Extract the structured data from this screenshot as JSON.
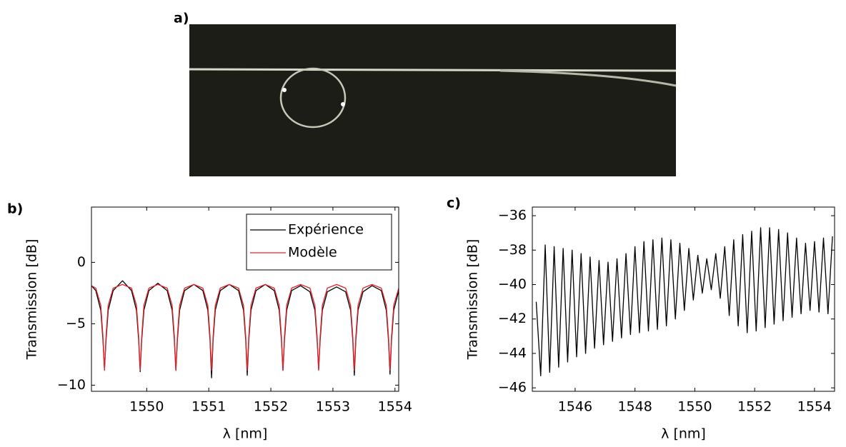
{
  "image": {
    "label": "a)"
  },
  "chart_data": [
    {
      "type": "line",
      "label": "b)",
      "xlabel": "λ [nm]",
      "ylabel": "Transmission [dB]",
      "xlim": [
        1549.11,
        1554.06
      ],
      "ylim": [
        -10.5,
        4.5
      ],
      "xticks": [
        1550,
        1551,
        1552,
        1553,
        1554
      ],
      "yticks": [
        {
          "value": -10,
          "label": "−10"
        },
        {
          "value": -5,
          "label": "−5"
        },
        0
      ],
      "legend": "upper right",
      "x": [
        1549.11,
        1549.18,
        1549.26,
        1549.295,
        1549.32,
        1549.345,
        1549.38,
        1549.46,
        1549.61,
        1549.755,
        1549.835,
        1549.87,
        1549.895,
        1549.92,
        1549.955,
        1550.035,
        1550.18,
        1550.33,
        1550.41,
        1550.445,
        1550.47,
        1550.495,
        1550.53,
        1550.61,
        1550.76,
        1550.905,
        1550.985,
        1551.02,
        1551.045,
        1551.07,
        1551.105,
        1551.185,
        1551.33,
        1551.48,
        1551.56,
        1551.595,
        1551.62,
        1551.645,
        1551.68,
        1551.76,
        1551.91,
        1552.055,
        1552.135,
        1552.17,
        1552.195,
        1552.22,
        1552.255,
        1552.335,
        1552.48,
        1552.63,
        1552.71,
        1552.745,
        1552.77,
        1552.795,
        1552.83,
        1552.91,
        1553.06,
        1553.205,
        1553.285,
        1553.32,
        1553.345,
        1553.37,
        1553.405,
        1553.485,
        1553.63,
        1553.78,
        1553.86,
        1553.895,
        1553.92,
        1553.945,
        1553.98,
        1554.06
      ],
      "series": [
        {
          "name": "Expérience",
          "color": "#000000",
          "values": [
            -1.9,
            -2.3,
            -3.9,
            -6.3,
            -8.7,
            -6.3,
            -3.9,
            -2.3,
            -1.5,
            -2.3,
            -3.9,
            -6.3,
            -8.9,
            -6.3,
            -3.9,
            -2.3,
            -1.7,
            -2.3,
            -3.9,
            -6.3,
            -8.8,
            -6.3,
            -3.9,
            -2.3,
            -1.8,
            -2.3,
            -3.9,
            -6.3,
            -9.4,
            -6.3,
            -3.9,
            -2.3,
            -1.8,
            -2.3,
            -3.9,
            -6.3,
            -9.2,
            -6.3,
            -3.9,
            -2.3,
            -1.8,
            -2.3,
            -3.9,
            -6.3,
            -8.8,
            -6.3,
            -3.9,
            -2.3,
            -1.9,
            -2.4,
            -3.9,
            -6.3,
            -8.7,
            -6.3,
            -3.9,
            -2.4,
            -2.0,
            -2.4,
            -3.9,
            -6.3,
            -9.2,
            -6.3,
            -3.9,
            -2.4,
            -1.9,
            -2.3,
            -3.9,
            -6.3,
            -9.1,
            -6.3,
            -3.9,
            -2.3
          ]
        },
        {
          "name": "Modèle",
          "color": "#e8202a",
          "values": [
            -1.9,
            -2.1,
            -3.5,
            -6.0,
            -8.8,
            -6.0,
            -3.5,
            -2.1,
            -1.8,
            -2.1,
            -3.5,
            -6.0,
            -8.8,
            -6.0,
            -3.5,
            -2.1,
            -1.8,
            -2.1,
            -3.5,
            -6.0,
            -8.8,
            -6.0,
            -3.5,
            -2.1,
            -1.8,
            -2.1,
            -3.5,
            -6.0,
            -8.8,
            -6.0,
            -3.5,
            -2.1,
            -1.8,
            -2.1,
            -3.5,
            -6.0,
            -8.8,
            -6.0,
            -3.5,
            -2.1,
            -1.8,
            -2.1,
            -3.5,
            -6.0,
            -8.8,
            -6.0,
            -3.5,
            -2.1,
            -1.8,
            -2.1,
            -3.5,
            -6.0,
            -8.8,
            -6.0,
            -3.5,
            -2.1,
            -1.8,
            -2.1,
            -3.5,
            -6.0,
            -8.8,
            -6.0,
            -3.5,
            -2.1,
            -1.8,
            -2.1,
            -3.5,
            -6.0,
            -8.8,
            -6.0,
            -3.5,
            -2.1
          ]
        }
      ]
    },
    {
      "type": "line",
      "label": "c)",
      "xlabel": "λ [nm]",
      "ylabel": "Transmission [dB]",
      "xlim": [
        1544.57,
        1554.67
      ],
      "ylim": [
        -46.2,
        -35.5
      ],
      "xticks": [
        1546,
        1548,
        1550,
        1552,
        1554
      ],
      "yticks": [
        {
          "value": -46,
          "label": "−46"
        },
        {
          "value": -44,
          "label": "−44"
        },
        {
          "value": -42,
          "label": "−42"
        },
        {
          "value": -40,
          "label": "−40"
        },
        {
          "value": -38,
          "label": "−38"
        },
        {
          "value": -36,
          "label": "−36"
        }
      ],
      "x": [
        1544.7,
        1544.85,
        1545.0,
        1545.15,
        1545.3,
        1545.45,
        1545.6,
        1545.75,
        1545.9,
        1546.05,
        1546.2,
        1546.35,
        1546.5,
        1546.65,
        1546.8,
        1546.95,
        1547.1,
        1547.25,
        1547.4,
        1547.55,
        1547.7,
        1547.85,
        1548.0,
        1548.15,
        1548.3,
        1548.45,
        1548.6,
        1548.75,
        1548.9,
        1549.05,
        1549.2,
        1549.35,
        1549.5,
        1549.65,
        1549.8,
        1549.95,
        1550.1,
        1550.25,
        1550.4,
        1550.55,
        1550.7,
        1550.85,
        1551.0,
        1551.15,
        1551.3,
        1551.45,
        1551.6,
        1551.75,
        1551.9,
        1552.05,
        1552.2,
        1552.35,
        1552.5,
        1552.65,
        1552.8,
        1552.95,
        1553.1,
        1553.25,
        1553.4,
        1553.55,
        1553.7,
        1553.85,
        1554.0,
        1554.15,
        1554.3,
        1554.45,
        1554.6
      ],
      "series": [
        {
          "color": "#000000",
          "values": [
            -41.0,
            -45.3,
            -37.7,
            -45.1,
            -37.8,
            -44.8,
            -37.9,
            -44.5,
            -38.0,
            -44.2,
            -38.2,
            -44.0,
            -38.4,
            -43.7,
            -38.6,
            -43.5,
            -38.7,
            -43.3,
            -38.5,
            -43.1,
            -38.2,
            -42.9,
            -37.8,
            -42.8,
            -37.5,
            -42.7,
            -37.4,
            -42.6,
            -37.3,
            -42.4,
            -37.4,
            -42.0,
            -37.6,
            -41.5,
            -37.9,
            -40.9,
            -38.3,
            -40.5,
            -38.5,
            -40.3,
            -38.2,
            -40.8,
            -37.8,
            -41.8,
            -37.4,
            -42.4,
            -37.1,
            -42.8,
            -36.9,
            -42.7,
            -36.7,
            -42.5,
            -36.7,
            -42.3,
            -36.8,
            -42.1,
            -37.0,
            -41.9,
            -37.3,
            -41.7,
            -37.6,
            -41.5,
            -37.5,
            -41.6,
            -37.3,
            -41.7,
            -37.2
          ]
        }
      ]
    }
  ]
}
